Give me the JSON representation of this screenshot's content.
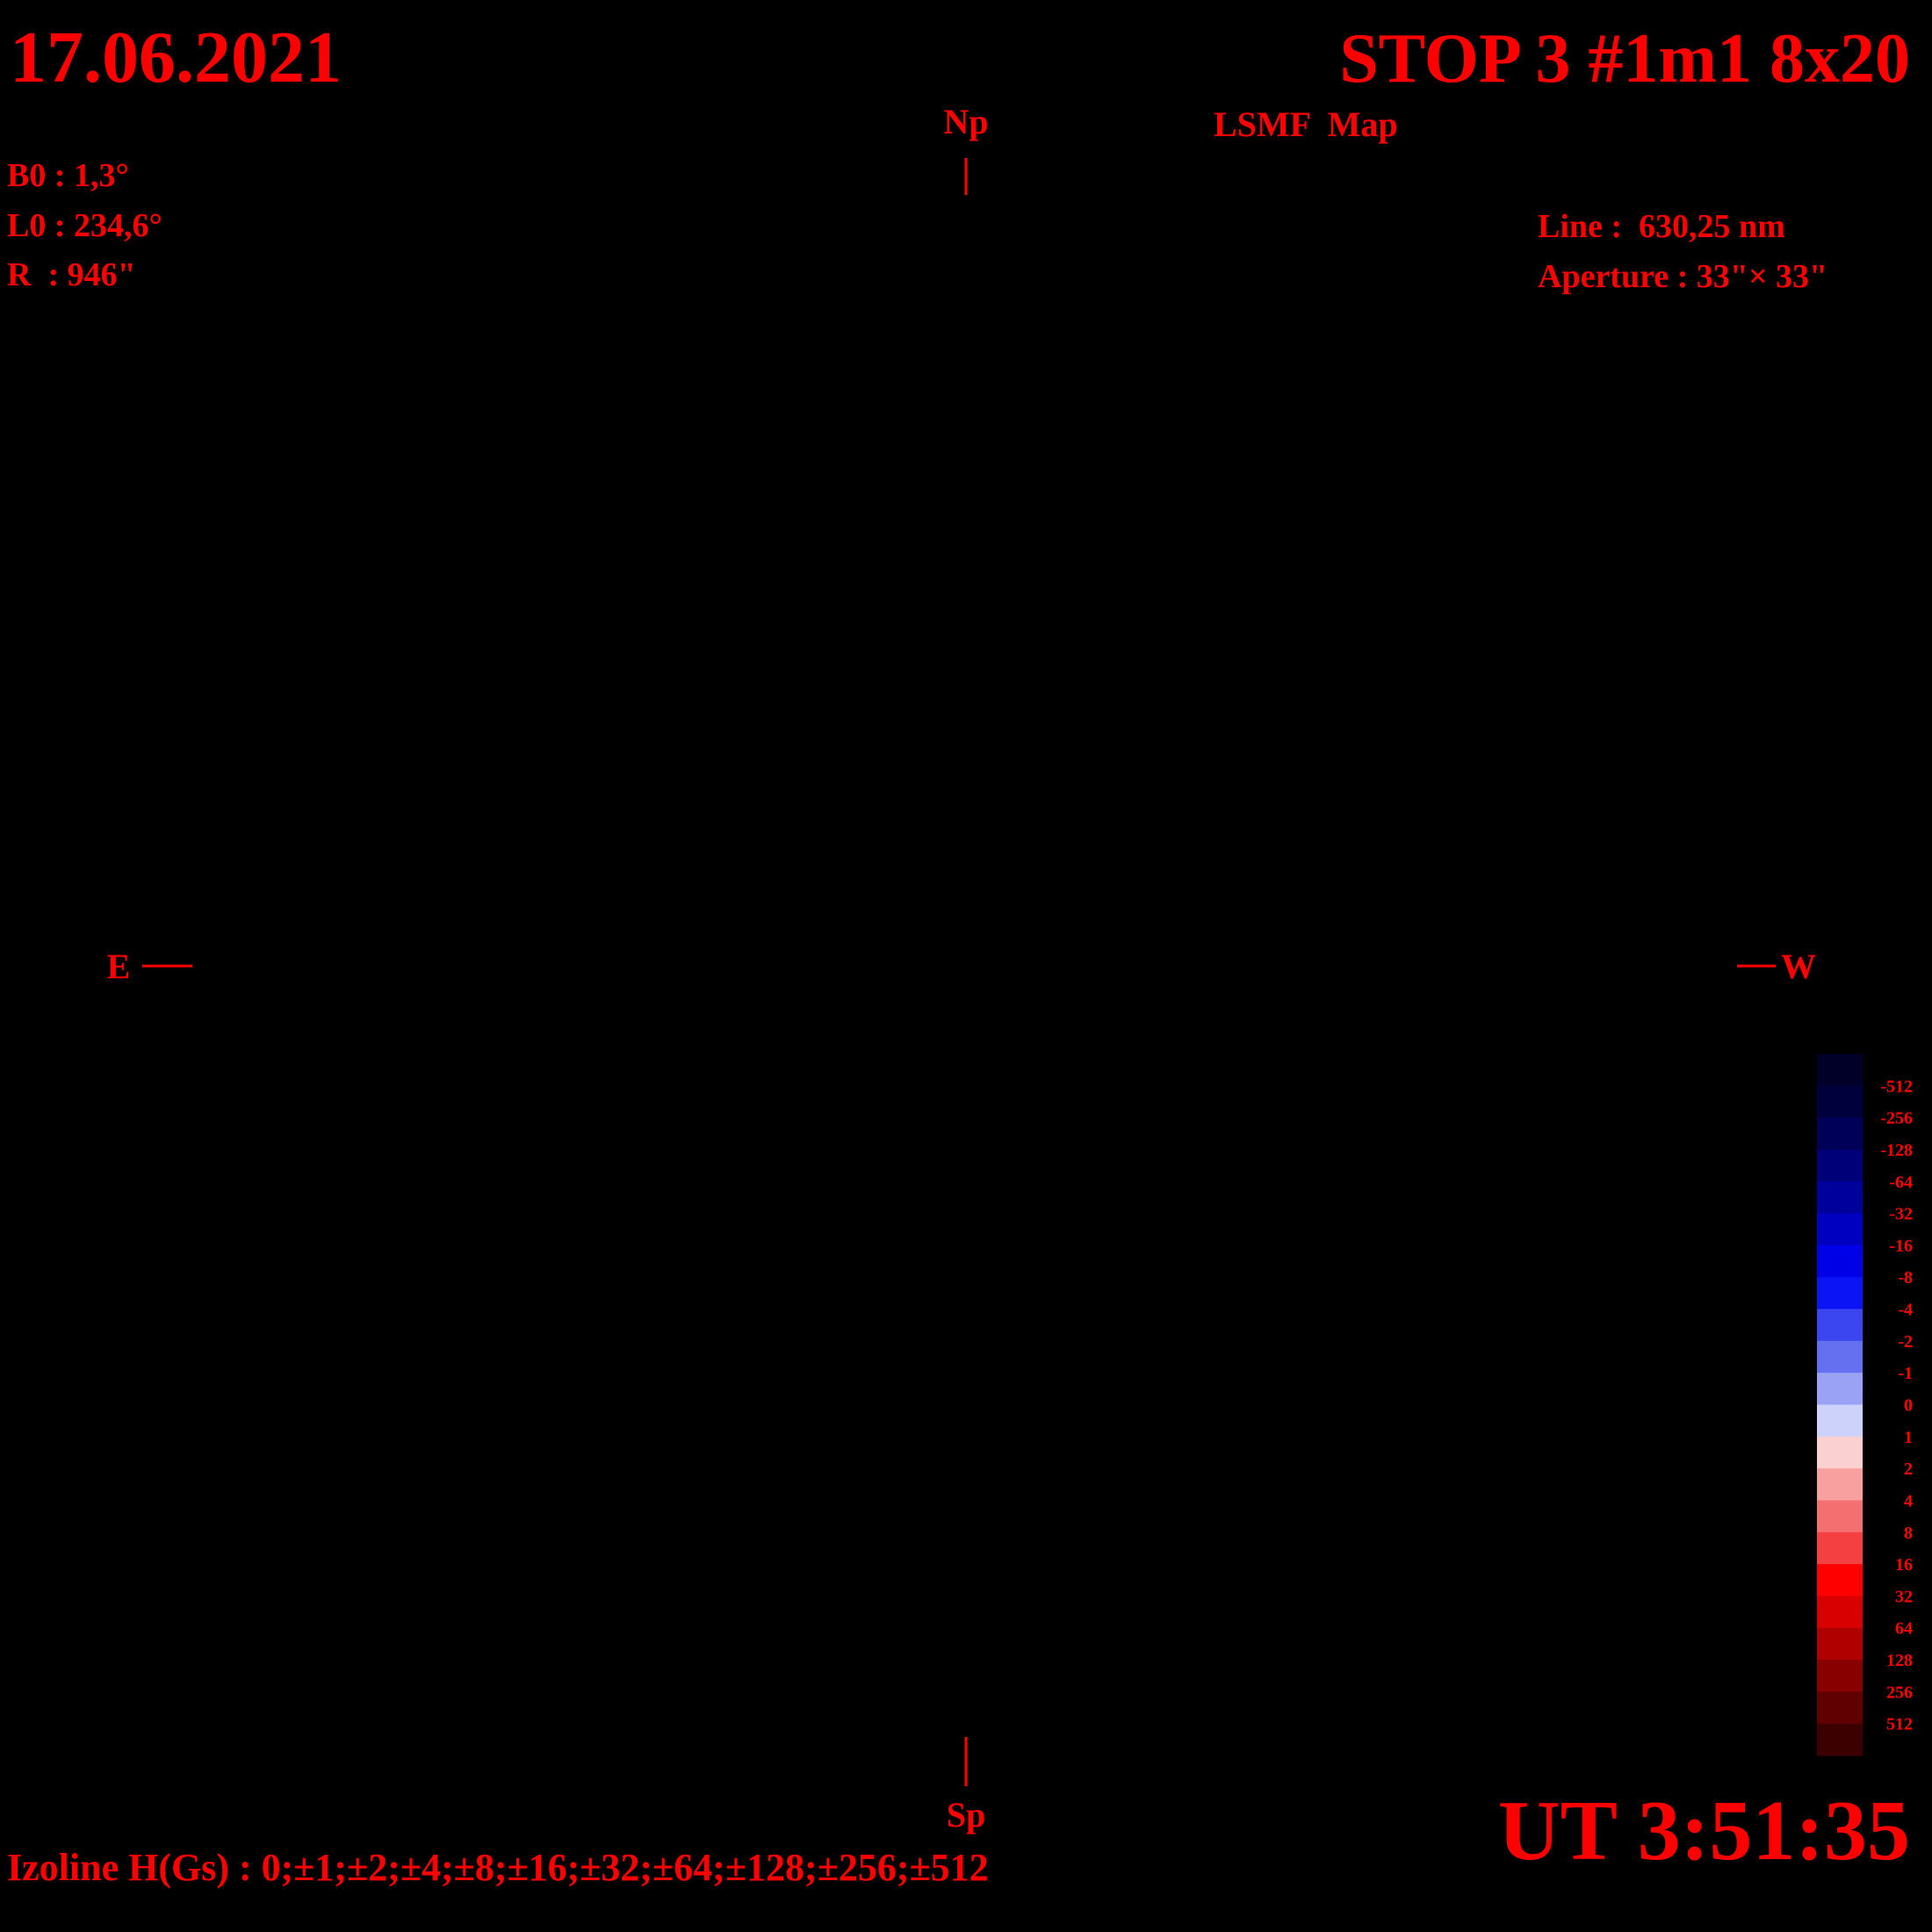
{
  "header": {
    "date": "17.06.2021",
    "title": "STOP 3 #1m1 8x20",
    "subtitle": "LSMF  Map",
    "ut": "UT 3:51:35"
  },
  "parameters": [
    "B0 : 1,3°",
    "L0 : 234,6°",
    "R  : 946\""
  ],
  "instrument": [
    "Line :  630,25 nm",
    "Aperture : 33\"× 33\""
  ],
  "directions": {
    "north": "Np",
    "south": "Sp",
    "east": "E",
    "west": "W"
  },
  "colorbar": {
    "levels": [
      -512,
      -256,
      -128,
      -64,
      -32,
      -16,
      -8,
      -4,
      -2,
      -1,
      0,
      1,
      2,
      4,
      8,
      16,
      32,
      64,
      128,
      256,
      512
    ],
    "colors": [
      "#000028",
      "#00003c",
      "#000058",
      "#000078",
      "#00009c",
      "#0000c0",
      "#0000e6",
      "#0a14f5",
      "#3c46f0",
      "#6470f0",
      "#9aa2f6",
      "#cdd2fa",
      "#fbd0d0",
      "#f8a0a0",
      "#f47070",
      "#f44040",
      "#ff0000",
      "#d80000",
      "#b00000",
      "#880000",
      "#600000",
      "#3c0000"
    ]
  },
  "footer": "Izoline H(Gs) : 0;±1;±2;±4;±8;±16;±32;±64;±128;±256;±512"
}
